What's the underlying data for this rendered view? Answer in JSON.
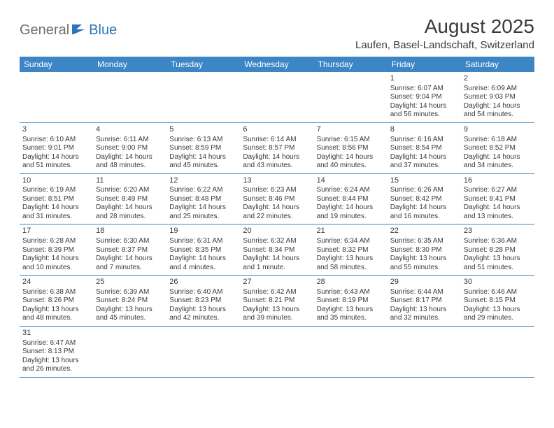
{
  "logo": {
    "text1": "General",
    "text2": "Blue"
  },
  "title": "August 2025",
  "location": "Laufen, Basel-Landschaft, Switzerland",
  "colors": {
    "header_bg": "#3d86c6",
    "header_text": "#ffffff",
    "rule": "#3d86c6",
    "text": "#3a3a3a",
    "logo_gray": "#6f6f6f",
    "logo_blue": "#2e75b6"
  },
  "weekdays": [
    "Sunday",
    "Monday",
    "Tuesday",
    "Wednesday",
    "Thursday",
    "Friday",
    "Saturday"
  ],
  "weeks": [
    [
      null,
      null,
      null,
      null,
      null,
      {
        "n": "1",
        "sr": "Sunrise: 6:07 AM",
        "ss": "Sunset: 9:04 PM",
        "dl1": "Daylight: 14 hours",
        "dl2": "and 56 minutes."
      },
      {
        "n": "2",
        "sr": "Sunrise: 6:09 AM",
        "ss": "Sunset: 9:03 PM",
        "dl1": "Daylight: 14 hours",
        "dl2": "and 54 minutes."
      }
    ],
    [
      {
        "n": "3",
        "sr": "Sunrise: 6:10 AM",
        "ss": "Sunset: 9:01 PM",
        "dl1": "Daylight: 14 hours",
        "dl2": "and 51 minutes."
      },
      {
        "n": "4",
        "sr": "Sunrise: 6:11 AM",
        "ss": "Sunset: 9:00 PM",
        "dl1": "Daylight: 14 hours",
        "dl2": "and 48 minutes."
      },
      {
        "n": "5",
        "sr": "Sunrise: 6:13 AM",
        "ss": "Sunset: 8:59 PM",
        "dl1": "Daylight: 14 hours",
        "dl2": "and 45 minutes."
      },
      {
        "n": "6",
        "sr": "Sunrise: 6:14 AM",
        "ss": "Sunset: 8:57 PM",
        "dl1": "Daylight: 14 hours",
        "dl2": "and 43 minutes."
      },
      {
        "n": "7",
        "sr": "Sunrise: 6:15 AM",
        "ss": "Sunset: 8:56 PM",
        "dl1": "Daylight: 14 hours",
        "dl2": "and 40 minutes."
      },
      {
        "n": "8",
        "sr": "Sunrise: 6:16 AM",
        "ss": "Sunset: 8:54 PM",
        "dl1": "Daylight: 14 hours",
        "dl2": "and 37 minutes."
      },
      {
        "n": "9",
        "sr": "Sunrise: 6:18 AM",
        "ss": "Sunset: 8:52 PM",
        "dl1": "Daylight: 14 hours",
        "dl2": "and 34 minutes."
      }
    ],
    [
      {
        "n": "10",
        "sr": "Sunrise: 6:19 AM",
        "ss": "Sunset: 8:51 PM",
        "dl1": "Daylight: 14 hours",
        "dl2": "and 31 minutes."
      },
      {
        "n": "11",
        "sr": "Sunrise: 6:20 AM",
        "ss": "Sunset: 8:49 PM",
        "dl1": "Daylight: 14 hours",
        "dl2": "and 28 minutes."
      },
      {
        "n": "12",
        "sr": "Sunrise: 6:22 AM",
        "ss": "Sunset: 8:48 PM",
        "dl1": "Daylight: 14 hours",
        "dl2": "and 25 minutes."
      },
      {
        "n": "13",
        "sr": "Sunrise: 6:23 AM",
        "ss": "Sunset: 8:46 PM",
        "dl1": "Daylight: 14 hours",
        "dl2": "and 22 minutes."
      },
      {
        "n": "14",
        "sr": "Sunrise: 6:24 AM",
        "ss": "Sunset: 8:44 PM",
        "dl1": "Daylight: 14 hours",
        "dl2": "and 19 minutes."
      },
      {
        "n": "15",
        "sr": "Sunrise: 6:26 AM",
        "ss": "Sunset: 8:42 PM",
        "dl1": "Daylight: 14 hours",
        "dl2": "and 16 minutes."
      },
      {
        "n": "16",
        "sr": "Sunrise: 6:27 AM",
        "ss": "Sunset: 8:41 PM",
        "dl1": "Daylight: 14 hours",
        "dl2": "and 13 minutes."
      }
    ],
    [
      {
        "n": "17",
        "sr": "Sunrise: 6:28 AM",
        "ss": "Sunset: 8:39 PM",
        "dl1": "Daylight: 14 hours",
        "dl2": "and 10 minutes."
      },
      {
        "n": "18",
        "sr": "Sunrise: 6:30 AM",
        "ss": "Sunset: 8:37 PM",
        "dl1": "Daylight: 14 hours",
        "dl2": "and 7 minutes."
      },
      {
        "n": "19",
        "sr": "Sunrise: 6:31 AM",
        "ss": "Sunset: 8:35 PM",
        "dl1": "Daylight: 14 hours",
        "dl2": "and 4 minutes."
      },
      {
        "n": "20",
        "sr": "Sunrise: 6:32 AM",
        "ss": "Sunset: 8:34 PM",
        "dl1": "Daylight: 14 hours",
        "dl2": "and 1 minute."
      },
      {
        "n": "21",
        "sr": "Sunrise: 6:34 AM",
        "ss": "Sunset: 8:32 PM",
        "dl1": "Daylight: 13 hours",
        "dl2": "and 58 minutes."
      },
      {
        "n": "22",
        "sr": "Sunrise: 6:35 AM",
        "ss": "Sunset: 8:30 PM",
        "dl1": "Daylight: 13 hours",
        "dl2": "and 55 minutes."
      },
      {
        "n": "23",
        "sr": "Sunrise: 6:36 AM",
        "ss": "Sunset: 8:28 PM",
        "dl1": "Daylight: 13 hours",
        "dl2": "and 51 minutes."
      }
    ],
    [
      {
        "n": "24",
        "sr": "Sunrise: 6:38 AM",
        "ss": "Sunset: 8:26 PM",
        "dl1": "Daylight: 13 hours",
        "dl2": "and 48 minutes."
      },
      {
        "n": "25",
        "sr": "Sunrise: 6:39 AM",
        "ss": "Sunset: 8:24 PM",
        "dl1": "Daylight: 13 hours",
        "dl2": "and 45 minutes."
      },
      {
        "n": "26",
        "sr": "Sunrise: 6:40 AM",
        "ss": "Sunset: 8:23 PM",
        "dl1": "Daylight: 13 hours",
        "dl2": "and 42 minutes."
      },
      {
        "n": "27",
        "sr": "Sunrise: 6:42 AM",
        "ss": "Sunset: 8:21 PM",
        "dl1": "Daylight: 13 hours",
        "dl2": "and 39 minutes."
      },
      {
        "n": "28",
        "sr": "Sunrise: 6:43 AM",
        "ss": "Sunset: 8:19 PM",
        "dl1": "Daylight: 13 hours",
        "dl2": "and 35 minutes."
      },
      {
        "n": "29",
        "sr": "Sunrise: 6:44 AM",
        "ss": "Sunset: 8:17 PM",
        "dl1": "Daylight: 13 hours",
        "dl2": "and 32 minutes."
      },
      {
        "n": "30",
        "sr": "Sunrise: 6:46 AM",
        "ss": "Sunset: 8:15 PM",
        "dl1": "Daylight: 13 hours",
        "dl2": "and 29 minutes."
      }
    ],
    [
      {
        "n": "31",
        "sr": "Sunrise: 6:47 AM",
        "ss": "Sunset: 8:13 PM",
        "dl1": "Daylight: 13 hours",
        "dl2": "and 26 minutes."
      },
      null,
      null,
      null,
      null,
      null,
      null
    ]
  ]
}
